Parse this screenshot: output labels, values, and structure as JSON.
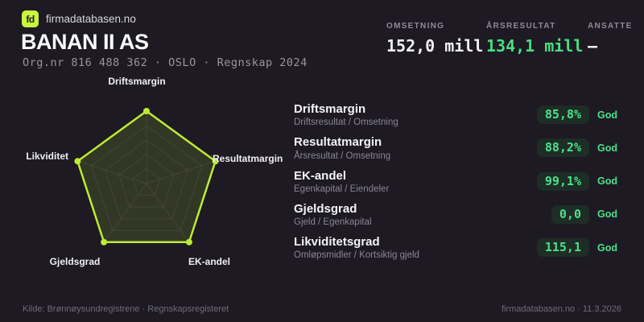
{
  "brand": {
    "logo_text": "fd",
    "site": "firmadatabasen.no"
  },
  "header": {
    "company_name": "BANAN II AS",
    "meta": "Org.nr 816 488 362 · OSLO · Regnskap 2024"
  },
  "key_stats": [
    {
      "label": "OMSETNING",
      "value": "152,0 mill",
      "color": "#f2f1f4"
    },
    {
      "label": "ÅRSRESULTAT",
      "value": "134,1 mill",
      "color": "#4ade80"
    },
    {
      "label": "ANSATTE",
      "value": "–",
      "color": "#f2f1f4"
    }
  ],
  "chart_data": {
    "type": "radar",
    "categories": [
      "Driftsmargin",
      "Resultatmargin",
      "EK-andel",
      "Gjeldsgrad",
      "Likviditet"
    ],
    "values": [
      100,
      100,
      100,
      100,
      100
    ],
    "max": 100,
    "grid_levels": 5,
    "legend_position": "none",
    "line_color": "#bdeb35",
    "fill_color": "rgba(189,235,53,0.14)"
  },
  "metrics": {
    "rows": [
      {
        "name": "Driftsmargin",
        "formula": "Driftsresultat / Omsetning",
        "value": "85,8%",
        "rating": "God"
      },
      {
        "name": "Resultatmargin",
        "formula": "Årsresultat / Omsetning",
        "value": "88,2%",
        "rating": "God"
      },
      {
        "name": "EK-andel",
        "formula": "Egenkapital / Eiendeler",
        "value": "99,1%",
        "rating": "God"
      },
      {
        "name": "Gjeldsgrad",
        "formula": "Gjeld / Egenkapital",
        "value": "0,0",
        "rating": "God"
      },
      {
        "name": "Likviditetsgrad",
        "formula": "Omløpsmidler / Kortsiktig gjeld",
        "value": "115,1",
        "rating": "God"
      }
    ]
  },
  "footer": {
    "source": "Kilde: Brønnøysundregistrene · Regnskapsregisteret",
    "site_date": "firmadatabasen.no · 11.3.2026"
  },
  "colors": {
    "background": "#1d1a23",
    "accent_lime": "#bdeb35",
    "logo_lime": "#c8f53d",
    "value_green": "#4ade80",
    "badge_bg": "#1e2d25"
  }
}
